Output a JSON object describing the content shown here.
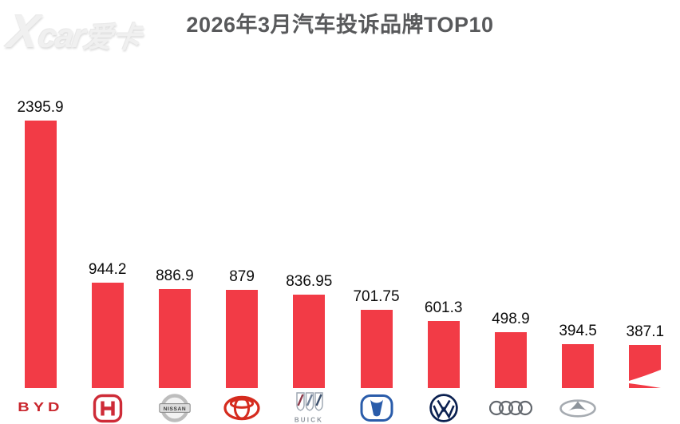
{
  "title": "2026年3月汽车投诉品牌TOP10",
  "watermark": {
    "x": "X",
    "car": "car",
    "cn": "爱卡"
  },
  "chart_data": {
    "type": "bar",
    "title": "2026年3月汽车投诉品牌TOP10",
    "categories": [
      "BYD",
      "Honda",
      "Nissan",
      "Toyota",
      "Buick",
      "Changan",
      "Volkswagen",
      "Audi",
      "Chery",
      "obscured"
    ],
    "values": [
      2395.9,
      944.2,
      886.9,
      879,
      836.95,
      701.75,
      601.3,
      498.9,
      394.5,
      387.1
    ],
    "value_labels": [
      "2395.9",
      "944.2",
      "886.9",
      "879",
      "836.95",
      "701.75",
      "601.3",
      "498.9",
      "394.5",
      "387.1"
    ],
    "bar_color": "#F23B46",
    "xlabel": "",
    "ylabel": "",
    "ylim": [
      0,
      2500
    ],
    "grid": false,
    "legend": false,
    "note": "category labels shown as brand logos; 10th logo hidden behind white swoosh"
  },
  "logo_texts": {
    "byd": "BYD",
    "nissan": "NISSAN",
    "buick": "BUICK"
  }
}
